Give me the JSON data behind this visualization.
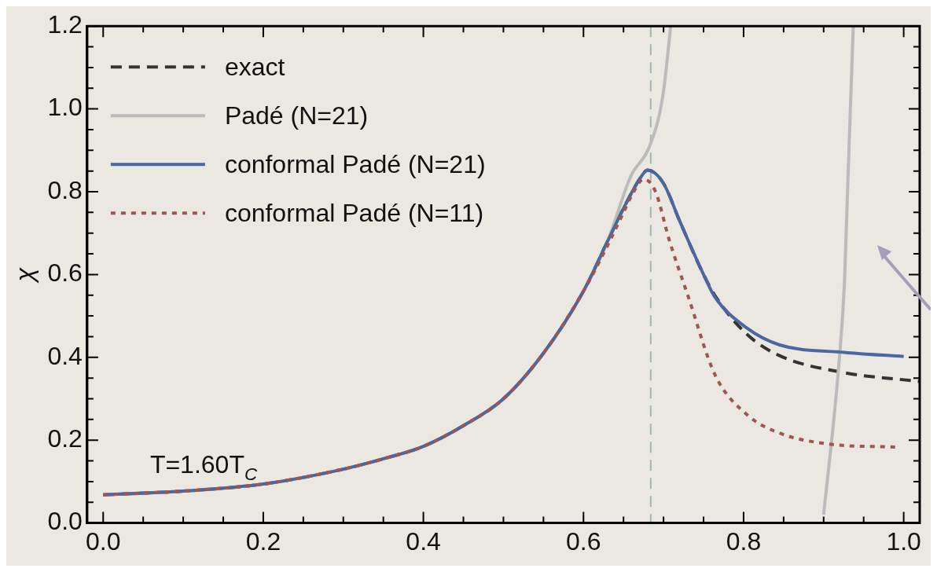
{
  "chart_data": {
    "type": "line",
    "ylabel": "χ",
    "xlim": [
      -0.02,
      1.02
    ],
    "ylim": [
      0,
      1.2
    ],
    "xticks": [
      {
        "value": 0,
        "label": "0.0"
      },
      {
        "value": 0.05,
        "label": null
      },
      {
        "value": 0.1,
        "label": null
      },
      {
        "value": 0.15,
        "label": null
      },
      0.2,
      {
        "value": 0.25,
        "label": null
      },
      {
        "value": 0.3,
        "label": null
      },
      {
        "value": 0.35,
        "label": null
      },
      0.4,
      {
        "value": 0.45,
        "label": null
      },
      {
        "value": 0.5,
        "label": null
      },
      {
        "value": 0.55,
        "label": null
      },
      0.6,
      {
        "value": 0.65,
        "label": null
      },
      {
        "value": 0.7,
        "label": null
      },
      {
        "value": 0.75,
        "label": null
      },
      0.8,
      {
        "value": 0.85,
        "label": null
      },
      {
        "value": 0.9,
        "label": null
      },
      {
        "value": 0.95,
        "label": null
      },
      {
        "value": 1,
        "label": "1.0"
      }
    ],
    "yticks": [
      {
        "value": 0,
        "label": "0.0"
      },
      {
        "value": 0.05,
        "label": null
      },
      {
        "value": 0.1,
        "label": null
      },
      {
        "value": 0.15,
        "label": null
      },
      0.2,
      {
        "value": 0.25,
        "label": null
      },
      {
        "value": 0.3,
        "label": null
      },
      {
        "value": 0.35,
        "label": null
      },
      0.4,
      {
        "value": 0.45,
        "label": null
      },
      {
        "value": 0.5,
        "label": null
      },
      {
        "value": 0.55,
        "label": null
      },
      0.6,
      {
        "value": 0.65,
        "label": null
      },
      {
        "value": 0.7,
        "label": null
      },
      {
        "value": 0.75,
        "label": null
      },
      0.8,
      {
        "value": 0.85,
        "label": null
      },
      {
        "value": 0.9,
        "label": null
      },
      {
        "value": 0.95,
        "label": null
      },
      {
        "value": 1,
        "label": "1.0"
      },
      {
        "value": 1.05,
        "label": null
      },
      {
        "value": 1.1,
        "label": null
      },
      {
        "value": 1.15,
        "label": null
      },
      1.2
    ],
    "grid": false,
    "legend": "top left",
    "marker": "none",
    "series": [
      {
        "name": "exact",
        "color": "#333333",
        "line_style": "dashed",
        "x": [
          0,
          0.1,
          0.2,
          0.3,
          0.35,
          0.4,
          0.45,
          0.5,
          0.55,
          0.6,
          0.63,
          0.65,
          0.67,
          0.68,
          0.7,
          0.72,
          0.75,
          0.764,
          0.804,
          0.845,
          0.926,
          1.019
        ],
        "values": [
          0.068,
          0.077,
          0.094,
          0.13,
          0.155,
          0.185,
          0.235,
          0.3,
          0.41,
          0.56,
          0.68,
          0.76,
          0.83,
          0.852,
          0.82,
          0.73,
          0.6,
          0.55,
          0.456,
          0.404,
          0.363,
          0.342
        ]
      },
      {
        "name": "Padé (N=21)",
        "color": "#bbbbbb",
        "line_style": "solid",
        "x": [
          0,
          0.1,
          0.2,
          0.3,
          0.35,
          0.4,
          0.45,
          0.5,
          0.55,
          0.6,
          0.63,
          0.659,
          0.683,
          0.699,
          0.709,
          0.8,
          0.9,
          0.918,
          0.926,
          0.93,
          0.937
        ],
        "values": [
          0.068,
          0.077,
          0.094,
          0.13,
          0.155,
          0.185,
          0.235,
          0.3,
          0.41,
          0.56,
          0.68,
          0.837,
          0.912,
          1.03,
          1.2,
          null,
          0.02,
          0.36,
          0.58,
          0.81,
          1.2
        ]
      },
      {
        "name": "conformal Padé (N=21)",
        "color": "#4a67a0",
        "line_style": "solid",
        "x": [
          0,
          0.1,
          0.2,
          0.3,
          0.35,
          0.4,
          0.45,
          0.5,
          0.55,
          0.6,
          0.63,
          0.65,
          0.67,
          0.68,
          0.7,
          0.72,
          0.75,
          0.764,
          0.804,
          0.845,
          0.926,
          1.0
        ],
        "values": [
          0.068,
          0.077,
          0.094,
          0.13,
          0.155,
          0.185,
          0.235,
          0.3,
          0.41,
          0.56,
          0.68,
          0.76,
          0.83,
          0.852,
          0.82,
          0.73,
          0.6,
          0.546,
          0.471,
          0.43,
          0.412,
          0.402
        ]
      },
      {
        "name": "conformal Padé (N=11)",
        "color": "#a0554f",
        "line_style": "dotted",
        "x": [
          0,
          0.1,
          0.2,
          0.3,
          0.35,
          0.4,
          0.45,
          0.5,
          0.55,
          0.6,
          0.63,
          0.65,
          0.66,
          0.675,
          0.69,
          0.707,
          0.731,
          0.764,
          0.804,
          0.845,
          0.905,
          0.992
        ],
        "values": [
          0.068,
          0.077,
          0.094,
          0.13,
          0.155,
          0.185,
          0.235,
          0.3,
          0.41,
          0.56,
          0.67,
          0.75,
          0.79,
          0.83,
          0.8,
          0.684,
          0.546,
          0.359,
          0.262,
          0.217,
          0.191,
          0.183
        ]
      }
    ],
    "ref_lines": [
      {
        "axis": "x",
        "value": 0.684,
        "color": "#9fb8b0",
        "line_style": "dashed"
      }
    ],
    "annotations": [
      "T=1.60T$_{C}$"
    ]
  }
}
